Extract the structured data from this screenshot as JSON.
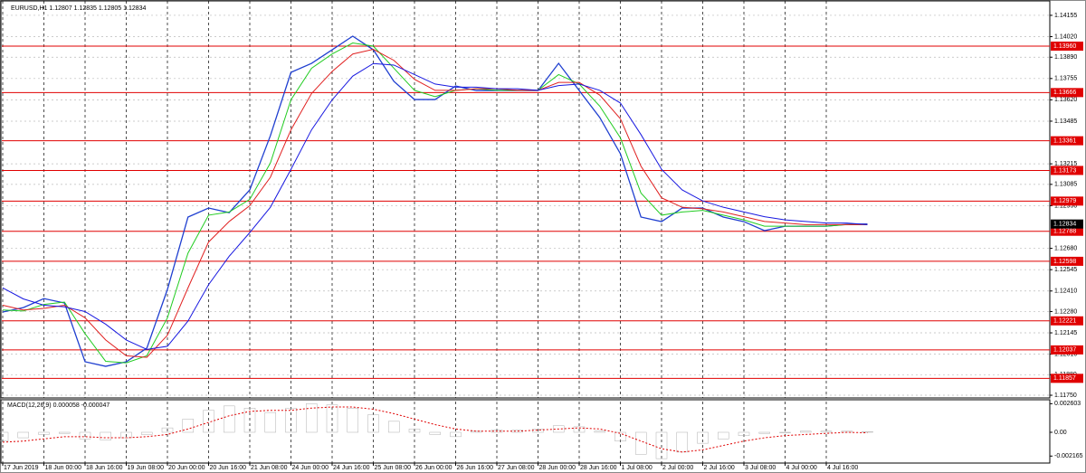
{
  "chart_data": [
    {
      "type": "line",
      "title": "EURUSD,H1  1.12807 1.12835 1.12805 1.12834",
      "categories": [
        "17 Jun 2019",
        null,
        "18 Jun 00:00",
        null,
        "18 Jun 16:00",
        null,
        "19 Jun 08:00",
        null,
        "20 Jun 00:00",
        null,
        "20 Jun 16:00",
        null,
        "21 Jun 08:00",
        null,
        "24 Jun 00:00",
        null,
        "24 Jun 16:00",
        null,
        "25 Jun 08:00",
        null,
        "26 Jun 00:00",
        null,
        "26 Jun 16:00",
        null,
        "27 Jun 08:00",
        null,
        "28 Jun 00:00",
        null,
        "28 Jun 16:00",
        null,
        "1 Jul 08:00",
        null,
        "2 Jul 00:00",
        null,
        "2 Jul 16:00",
        null,
        "3 Jul 08:00",
        null,
        "4 Jul 00:00",
        null,
        "4 Jul 16:00",
        null,
        null
      ],
      "series": [
        {
          "name": "EURUSD",
          "color": "#1f3fd0",
          "values": [
            1.12277,
            1.12305,
            1.12362,
            1.12334,
            1.11962,
            1.11933,
            1.11962,
            1.12048,
            1.1242,
            1.12878,
            1.12935,
            1.12906,
            1.1305,
            1.13393,
            1.13794,
            1.13851,
            1.13937,
            1.14023,
            1.13937,
            1.13737,
            1.13622,
            1.13622,
            1.13708,
            1.13679,
            1.13679,
            1.13679,
            1.13679,
            1.13851,
            1.13679,
            1.13508,
            1.13279,
            1.12878,
            1.12849,
            1.12935,
            1.12935,
            1.12878,
            1.12849,
            1.12792,
            1.1282,
            1.1282,
            1.1282,
            1.12832,
            1.12834
          ]
        },
        {
          "color": "#22cc22",
          "values": [
            1.1229,
            1.12283,
            1.12325,
            1.1234,
            1.1214,
            1.11965,
            1.11955,
            1.12,
            1.1224,
            1.1265,
            1.1289,
            1.1291,
            1.1299,
            1.1322,
            1.1362,
            1.1382,
            1.1391,
            1.1398,
            1.1396,
            1.1382,
            1.1368,
            1.1364,
            1.1368,
            1.1369,
            1.1368,
            1.1368,
            1.1368,
            1.1378,
            1.1372,
            1.1358,
            1.1338,
            1.1303,
            1.1289,
            1.1291,
            1.1292,
            1.1289,
            1.1286,
            1.1282,
            1.1282,
            1.1282,
            1.1282,
            1.1283,
            1.1283
          ]
        },
        {
          "color": "#e02020",
          "values": [
            1.1232,
            1.1229,
            1.123,
            1.1232,
            1.1224,
            1.121,
            1.12,
            1.1199,
            1.1213,
            1.1243,
            1.1272,
            1.1285,
            1.1295,
            1.1313,
            1.1343,
            1.1366,
            1.138,
            1.1391,
            1.1394,
            1.1387,
            1.1375,
            1.1368,
            1.1368,
            1.1369,
            1.1369,
            1.1368,
            1.1368,
            1.1373,
            1.1373,
            1.1365,
            1.135,
            1.132,
            1.13,
            1.1294,
            1.1293,
            1.1291,
            1.1288,
            1.1285,
            1.1284,
            1.1283,
            1.1283,
            1.1283,
            1.1283
          ]
        },
        {
          "color": "#1818e0",
          "values": [
            1.1243,
            1.1236,
            1.1232,
            1.1231,
            1.1228,
            1.122,
            1.121,
            1.1204,
            1.1206,
            1.1222,
            1.1245,
            1.1263,
            1.1278,
            1.1294,
            1.1318,
            1.1343,
            1.1362,
            1.1377,
            1.1385,
            1.1384,
            1.1378,
            1.1372,
            1.137,
            1.137,
            1.1369,
            1.1369,
            1.1368,
            1.1371,
            1.1372,
            1.1368,
            1.136,
            1.134,
            1.1318,
            1.1305,
            1.1298,
            1.1294,
            1.1291,
            1.1288,
            1.1286,
            1.1285,
            1.1284,
            1.1284,
            1.1283
          ]
        }
      ],
      "ylim": [
        1.11733,
        1.14252
      ],
      "yticks": [
        {
          "value": 1.14155,
          "label": "1.14155"
        },
        {
          "value": 1.1402,
          "label": "1.14020"
        },
        {
          "value": 1.1389,
          "label": "1.13890"
        },
        {
          "value": 1.13755,
          "label": "1.13755"
        },
        {
          "value": 1.1362,
          "label": "1.13620"
        },
        {
          "value": 1.13485,
          "label": "1.13485"
        },
        {
          "value": 1.13215,
          "label": "1.13215"
        },
        {
          "value": 1.13085,
          "label": "1.13085"
        },
        {
          "value": 1.1295,
          "label": "1.12950"
        },
        {
          "value": 1.1268,
          "label": "1.12680"
        },
        {
          "value": 1.12545,
          "label": "1.12545"
        },
        {
          "value": 1.1241,
          "label": "1.12410"
        },
        {
          "value": 1.1228,
          "label": "1.12280"
        },
        {
          "value": 1.12145,
          "label": "1.12145"
        },
        {
          "value": 1.1201,
          "label": "1.12010"
        },
        {
          "value": 1.1188,
          "label": "1.11880"
        },
        {
          "value": 1.1175,
          "label": "1.11750"
        }
      ],
      "levels": [
        {
          "value": 1.1396,
          "label": "1.13960"
        },
        {
          "value": 1.13666,
          "label": "1.13666"
        },
        {
          "value": 1.13361,
          "label": "1.13361"
        },
        {
          "value": 1.13173,
          "label": "1.13173"
        },
        {
          "value": 1.12979,
          "label": "1.12979"
        },
        {
          "value": 1.12788,
          "label": "1.12788"
        },
        {
          "value": 1.12598,
          "label": "1.12598"
        },
        {
          "value": 1.12221,
          "label": "1.12221"
        },
        {
          "value": 1.12037,
          "label": "1.12037"
        },
        {
          "value": 1.11857,
          "label": "1.11857"
        }
      ],
      "level_color": "#e00000",
      "current_price": 1.12834,
      "grid": true
    },
    {
      "type": "bar",
      "title": "MACD(12,26,9) 0.000058 -0.000047",
      "series": [
        {
          "color": "#b0b0b0",
          "values": [
            -0.0008,
            -0.0005,
            -0.0002,
            -0.0001,
            -0.0006,
            -0.0007,
            -0.0005,
            -0.0002,
            0.0004,
            0.0012,
            0.002,
            0.0024,
            0.0022,
            0.0018,
            0.0022,
            0.0026,
            0.0025,
            0.0022,
            0.0016,
            0.001,
            0.0003,
            -0.0002,
            -0.0004,
            0.0001,
            0.0002,
            0.0002,
            0.0003,
            0.0006,
            0.0005,
            0.0001,
            -0.0008,
            -0.002,
            -0.0024,
            -0.0018,
            -0.001,
            -0.0006,
            -0.0003,
            -0.0001,
            0,
            0.0001,
            0.0001,
            0.0001,
            5.8e-05
          ]
        },
        {
          "color": "#e00000",
          "values": [
            -0.0009,
            -0.0008,
            -0.0006,
            -0.0004,
            -0.0004,
            -0.0005,
            -0.0005,
            -0.0004,
            -0.0002,
            0.0003,
            0.0009,
            0.0015,
            0.0019,
            0.002,
            0.002,
            0.0022,
            0.0023,
            0.0023,
            0.0021,
            0.0017,
            0.0012,
            0.0007,
            0.0003,
            0.0001,
            0.0001,
            0.0001,
            0.0002,
            0.0003,
            0.0004,
            0.0003,
            -0.0001,
            -0.0008,
            -0.0015,
            -0.0018,
            -0.0016,
            -0.0012,
            -0.0008,
            -0.0005,
            -0.0003,
            -0.0002,
            -0.0001,
            0,
            -4.7e-05
          ]
        }
      ],
      "ylim": [
        -0.0028,
        0.00288
      ],
      "yticks": [
        0.002603,
        {
          "value": 0,
          "label": "0.00"
        },
        -0.002165
      ]
    }
  ]
}
